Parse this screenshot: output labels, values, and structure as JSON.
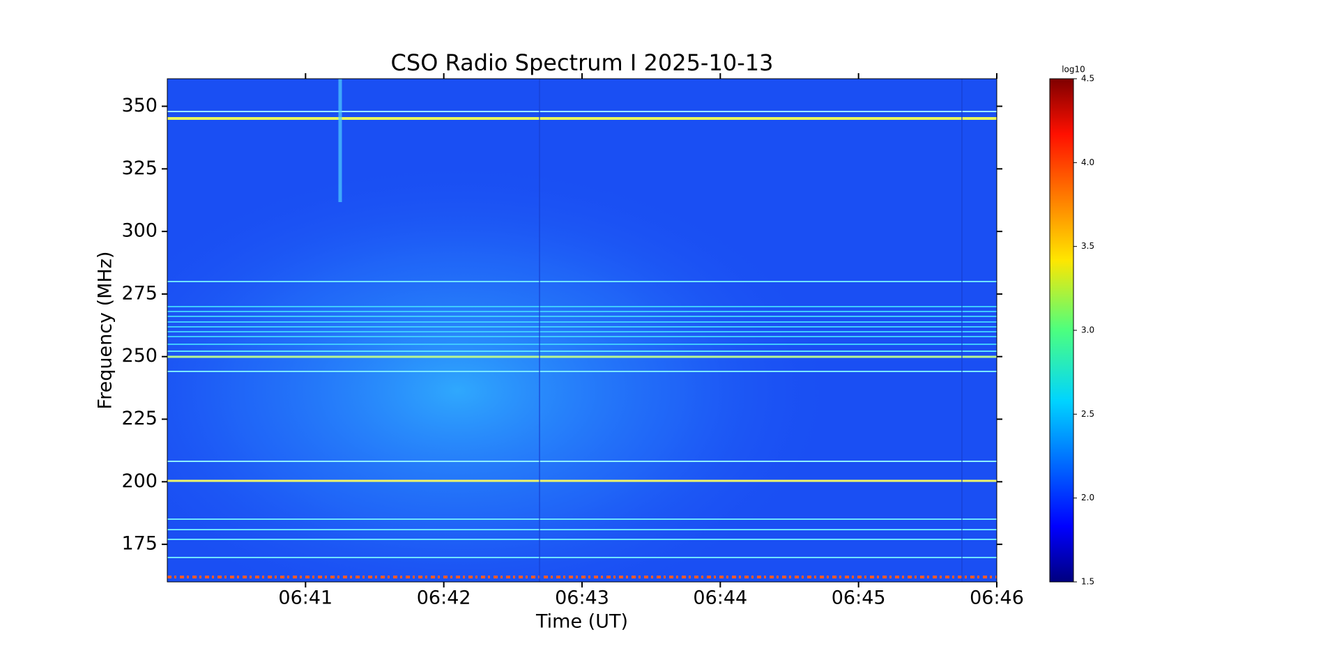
{
  "chart_data": {
    "type": "heatmap",
    "title": "CSO Radio Spectrum I 2025-10-13",
    "x_label": "Time (UT)",
    "y_label": "Frequency (MHz)",
    "xlim": [
      400,
      406
    ],
    "xticks": [
      {
        "value": 401,
        "label": "06:41"
      },
      {
        "value": 402,
        "label": "06:42"
      },
      {
        "value": 403,
        "label": "06:43"
      },
      {
        "value": 404,
        "label": "06:44"
      },
      {
        "value": 405,
        "label": "06:45"
      },
      {
        "value": 406,
        "label": "06:46"
      }
    ],
    "ylim": [
      160,
      361
    ],
    "yticks": [
      175,
      200,
      225,
      250,
      275,
      300,
      325,
      350
    ],
    "colorbar": {
      "label": "log10",
      "lim": [
        1.5,
        4.5
      ],
      "ticks": [
        1.5,
        {
          "value": 2,
          "label": "2.0"
        },
        2.5,
        {
          "value": 3,
          "label": "3.0"
        },
        3.5,
        {
          "value": 4,
          "label": "4.0"
        },
        4.5
      ],
      "colormap": "jet"
    }
  }
}
